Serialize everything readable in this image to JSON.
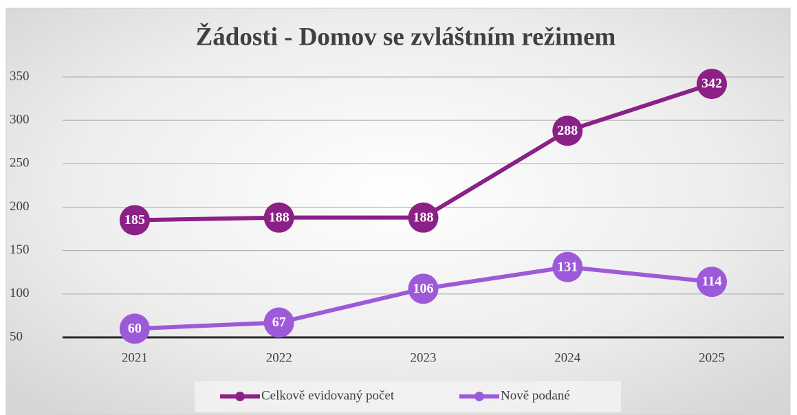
{
  "chart_data": {
    "type": "line",
    "title": "Žádosti - Domov se zvláštním režimem",
    "categories": [
      "2021",
      "2022",
      "2023",
      "2024",
      "2025"
    ],
    "series": [
      {
        "name": "Celkově evidovaný počet",
        "color": "#8b2087",
        "values": [
          185,
          188,
          188,
          288,
          342
        ]
      },
      {
        "name": "Nově podané",
        "color": "#9d5ad8",
        "values": [
          60,
          67,
          106,
          131,
          114
        ]
      }
    ],
    "ylim": [
      50,
      350
    ],
    "yticks": [
      50,
      100,
      150,
      200,
      250,
      300,
      350
    ],
    "grid": true,
    "legend": "bottom"
  }
}
